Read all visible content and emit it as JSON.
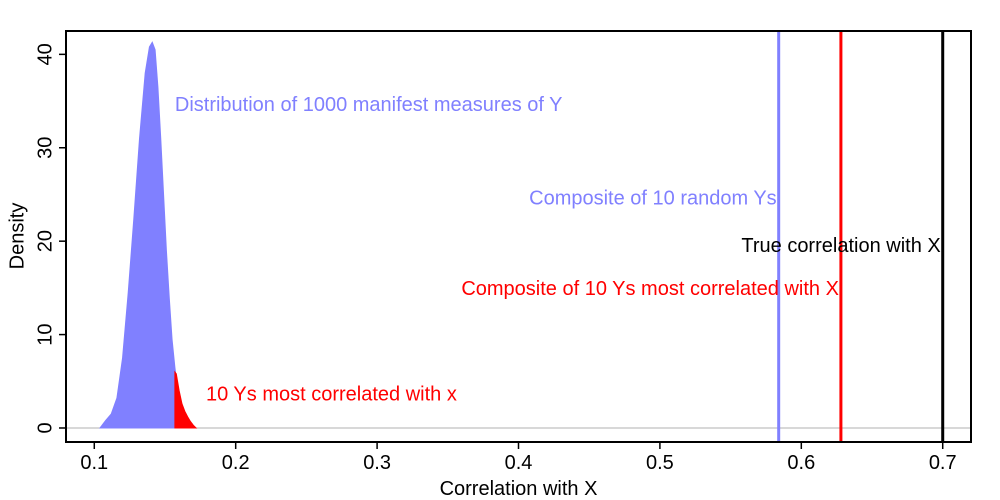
{
  "chart_data": {
    "type": "area",
    "xlabel": "Correlation with X",
    "ylabel": "Density",
    "xlim": [
      0.08,
      0.72
    ],
    "ylim": [
      -1.5,
      42.5
    ],
    "xticks": [
      "0.1",
      "0.2",
      "0.3",
      "0.4",
      "0.5",
      "0.6",
      "0.7"
    ],
    "xtick_values": [
      0.1,
      0.2,
      0.3,
      0.4,
      0.5,
      0.6,
      0.7
    ],
    "yticks": [
      "0",
      "10",
      "20",
      "30",
      "40"
    ],
    "ytick_values": [
      0,
      10,
      20,
      30,
      40
    ],
    "baseline": 0,
    "series": [
      {
        "name": "Distribution of 1000 manifest measures of Y",
        "color": "#8080ff",
        "x": [
          0.104,
          0.108,
          0.112,
          0.116,
          0.12,
          0.124,
          0.128,
          0.132,
          0.136,
          0.139,
          0.141,
          0.143,
          0.145,
          0.147,
          0.149,
          0.151,
          0.153,
          0.155,
          0.157,
          0.159
        ],
        "y": [
          0.0,
          0.8,
          1.5,
          3.2,
          7.5,
          14.5,
          22.5,
          31.0,
          38.0,
          40.8,
          41.3,
          40.5,
          36.5,
          31.0,
          25.0,
          19.0,
          14.0,
          9.5,
          6.5,
          4.0
        ]
      },
      {
        "name": "10 Ys most correlated with x",
        "color": "#ff0000",
        "x": [
          0.157,
          0.158,
          0.16,
          0.162,
          0.164,
          0.166,
          0.168,
          0.17,
          0.172
        ],
        "y": [
          6.0,
          5.8,
          4.0,
          2.6,
          1.8,
          1.2,
          0.7,
          0.3,
          0.0
        ]
      }
    ],
    "vlines": [
      {
        "label": "Composite of 10 random Ys",
        "x": 0.584,
        "color": "#8080ff"
      },
      {
        "label": "Composite of 10 Ys most correlated with X",
        "x": 0.628,
        "color": "#ff0000"
      },
      {
        "label": "True correlation with X",
        "x": 0.7,
        "color": "#000000"
      }
    ],
    "annotations": [
      {
        "id": "dist",
        "text": "Distribution of 1000 manifest measures of Y",
        "x": 0.157,
        "y": 34.5,
        "color": "#8080ff",
        "anchor": "start"
      },
      {
        "id": "random",
        "text": "Composite of 10 random Ys",
        "x": 0.584,
        "y": 24.5,
        "color": "#8080ff",
        "anchor": "end"
      },
      {
        "id": "true",
        "text": "True correlation with X",
        "x": 0.7,
        "y": 19.4,
        "color": "#000000",
        "anchor": "end"
      },
      {
        "id": "composite",
        "text": "Composite of 10 Ys most correlated with X",
        "x": 0.628,
        "y": 14.8,
        "color": "#ff0000",
        "anchor": "end"
      },
      {
        "id": "top10",
        "text": "10 Ys most correlated with x",
        "x": 0.179,
        "y": 3.5,
        "color": "#ff0000",
        "anchor": "start"
      }
    ],
    "grid": false,
    "legend": "none"
  }
}
